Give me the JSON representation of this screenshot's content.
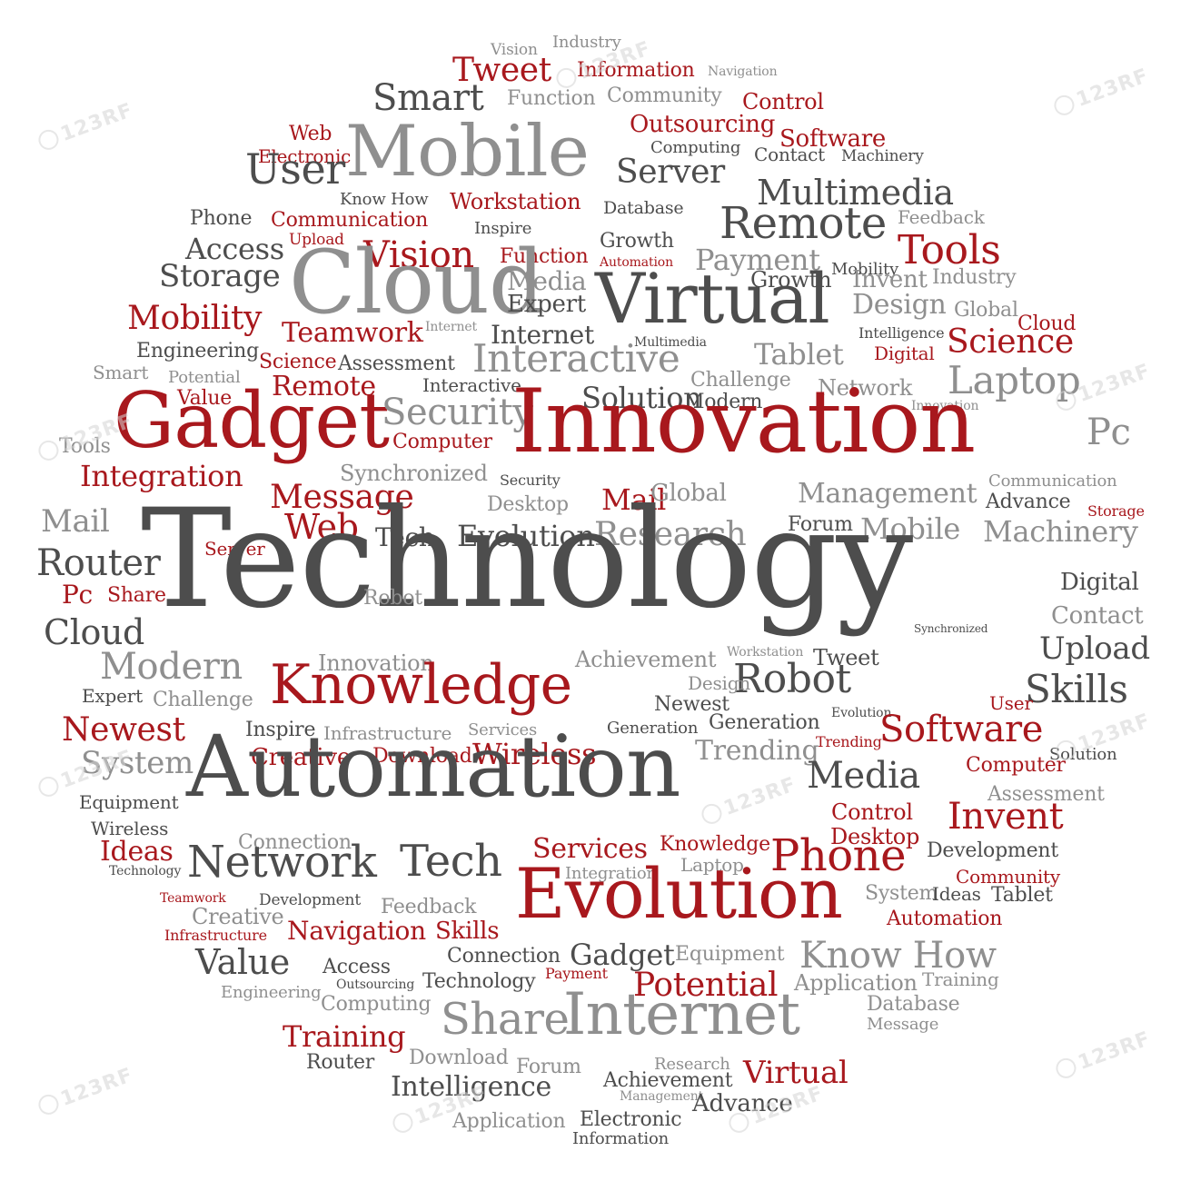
{
  "colors": {
    "dark": "#4d4d4d",
    "red": "#a8181d",
    "gray": "#8f8f8f"
  },
  "watermark_text": "123RF",
  "words": [
    {
      "t": "Vision",
      "c": "gray"
    },
    {
      "t": "Industry",
      "c": "gray"
    },
    {
      "t": "Tweet",
      "c": "red"
    },
    {
      "t": "Information",
      "c": "red"
    },
    {
      "t": "Navigation",
      "c": "gray"
    },
    {
      "t": "Smart",
      "c": "dark"
    },
    {
      "t": "Function",
      "c": "gray"
    },
    {
      "t": "Community",
      "c": "gray"
    },
    {
      "t": "Control",
      "c": "red"
    },
    {
      "t": "Outsourcing",
      "c": "red"
    },
    {
      "t": "Web",
      "c": "red"
    },
    {
      "t": "Mobile",
      "c": "gray"
    },
    {
      "t": "Software",
      "c": "red"
    },
    {
      "t": "Electronic",
      "c": "red"
    },
    {
      "t": "Computing",
      "c": "dark"
    },
    {
      "t": "Contact",
      "c": "dark"
    },
    {
      "t": "Machinery",
      "c": "dark"
    },
    {
      "t": "User",
      "c": "dark"
    },
    {
      "t": "Server",
      "c": "dark"
    },
    {
      "t": "Know How",
      "c": "dark"
    },
    {
      "t": "Workstation",
      "c": "red"
    },
    {
      "t": "Multimedia",
      "c": "dark"
    },
    {
      "t": "Database",
      "c": "dark"
    },
    {
      "t": "Phone",
      "c": "dark"
    },
    {
      "t": "Communication",
      "c": "red"
    },
    {
      "t": "Remote",
      "c": "dark"
    },
    {
      "t": "Feedback",
      "c": "gray"
    },
    {
      "t": "Inspire",
      "c": "dark"
    },
    {
      "t": "Upload",
      "c": "red"
    },
    {
      "t": "Growth",
      "c": "dark"
    },
    {
      "t": "Access",
      "c": "dark"
    },
    {
      "t": "Vision",
      "c": "red"
    },
    {
      "t": "Function",
      "c": "red"
    },
    {
      "t": "Tools",
      "c": "red"
    },
    {
      "t": "Automation",
      "c": "red"
    },
    {
      "t": "Payment",
      "c": "gray"
    },
    {
      "t": "Mobility",
      "c": "dark"
    },
    {
      "t": "Storage",
      "c": "dark"
    },
    {
      "t": "Cloud",
      "c": "gray"
    },
    {
      "t": "Invent",
      "c": "gray"
    },
    {
      "t": "Industry",
      "c": "gray"
    },
    {
      "t": "Media",
      "c": "gray"
    },
    {
      "t": "Growth",
      "c": "dark"
    },
    {
      "t": "Virtual",
      "c": "dark"
    },
    {
      "t": "Design",
      "c": "gray"
    },
    {
      "t": "Expert",
      "c": "dark"
    },
    {
      "t": "Global",
      "c": "gray"
    },
    {
      "t": "Mobility",
      "c": "red"
    },
    {
      "t": "Cloud",
      "c": "red"
    },
    {
      "t": "Teamwork",
      "c": "red"
    },
    {
      "t": "Internet",
      "c": "gray"
    },
    {
      "t": "Internet",
      "c": "dark"
    },
    {
      "t": "Intelligence",
      "c": "dark"
    },
    {
      "t": "Multimedia",
      "c": "dark"
    },
    {
      "t": "Digital",
      "c": "red"
    },
    {
      "t": "Science",
      "c": "red"
    },
    {
      "t": "Engineering",
      "c": "dark"
    },
    {
      "t": "Interactive",
      "c": "gray"
    },
    {
      "t": "Tablet",
      "c": "gray"
    },
    {
      "t": "Science",
      "c": "red"
    },
    {
      "t": "Assessment",
      "c": "dark"
    },
    {
      "t": "Smart",
      "c": "gray"
    },
    {
      "t": "Potential",
      "c": "gray"
    },
    {
      "t": "Laptop",
      "c": "gray"
    },
    {
      "t": "Challenge",
      "c": "gray"
    },
    {
      "t": "Interactive",
      "c": "dark"
    },
    {
      "t": "Remote",
      "c": "red"
    },
    {
      "t": "Network",
      "c": "gray"
    },
    {
      "t": "Value",
      "c": "red"
    },
    {
      "t": "Solution",
      "c": "dark"
    },
    {
      "t": "Modern",
      "c": "dark"
    },
    {
      "t": "Innovation",
      "c": "gray"
    },
    {
      "t": "Gadget",
      "c": "red"
    },
    {
      "t": "Security",
      "c": "gray"
    },
    {
      "t": "Innovation",
      "c": "red"
    },
    {
      "t": "Pc",
      "c": "gray"
    },
    {
      "t": "Tools",
      "c": "gray"
    },
    {
      "t": "Computer",
      "c": "red"
    },
    {
      "t": "Integration",
      "c": "red"
    },
    {
      "t": "Synchronized",
      "c": "gray"
    },
    {
      "t": "Security",
      "c": "dark"
    },
    {
      "t": "Communication",
      "c": "gray"
    },
    {
      "t": "Message",
      "c": "red"
    },
    {
      "t": "Desktop",
      "c": "gray"
    },
    {
      "t": "Mail",
      "c": "red"
    },
    {
      "t": "Global",
      "c": "gray"
    },
    {
      "t": "Management",
      "c": "gray"
    },
    {
      "t": "Advance",
      "c": "dark"
    },
    {
      "t": "Storage",
      "c": "red"
    },
    {
      "t": "Mail",
      "c": "gray"
    },
    {
      "t": "Web",
      "c": "red"
    },
    {
      "t": "Tech",
      "c": "dark"
    },
    {
      "t": "Evolution",
      "c": "dark"
    },
    {
      "t": "Research",
      "c": "gray"
    },
    {
      "t": "Forum",
      "c": "dark"
    },
    {
      "t": "Mobile",
      "c": "gray"
    },
    {
      "t": "Machinery",
      "c": "gray"
    },
    {
      "t": "Server",
      "c": "red"
    },
    {
      "t": "Technology",
      "c": "dark"
    },
    {
      "t": "Router",
      "c": "dark"
    },
    {
      "t": "Digital",
      "c": "dark"
    },
    {
      "t": "Pc",
      "c": "red"
    },
    {
      "t": "Share",
      "c": "red"
    },
    {
      "t": "Robot",
      "c": "gray"
    },
    {
      "t": "Synchronized",
      "c": "dark"
    },
    {
      "t": "Contact",
      "c": "gray"
    },
    {
      "t": "Cloud",
      "c": "dark"
    },
    {
      "t": "Upload",
      "c": "dark"
    },
    {
      "t": "Workstation",
      "c": "gray"
    },
    {
      "t": "Tweet",
      "c": "dark"
    },
    {
      "t": "Modern",
      "c": "gray"
    },
    {
      "t": "Innovation",
      "c": "gray"
    },
    {
      "t": "Achievement",
      "c": "gray"
    },
    {
      "t": "Knowledge",
      "c": "red"
    },
    {
      "t": "Robot",
      "c": "dark"
    },
    {
      "t": "Design",
      "c": "gray"
    },
    {
      "t": "Skills",
      "c": "dark"
    },
    {
      "t": "Expert",
      "c": "dark"
    },
    {
      "t": "Challenge",
      "c": "gray"
    },
    {
      "t": "Newest",
      "c": "dark"
    },
    {
      "t": "Evolution",
      "c": "dark"
    },
    {
      "t": "User",
      "c": "red"
    },
    {
      "t": "Newest",
      "c": "red"
    },
    {
      "t": "Inspire",
      "c": "dark"
    },
    {
      "t": "Infrastructure",
      "c": "gray"
    },
    {
      "t": "Services",
      "c": "gray"
    },
    {
      "t": "Generation",
      "c": "dark"
    },
    {
      "t": "Generation",
      "c": "dark"
    },
    {
      "t": "Software",
      "c": "red"
    },
    {
      "t": "Trending",
      "c": "red"
    },
    {
      "t": "System",
      "c": "gray"
    },
    {
      "t": "Creative",
      "c": "red"
    },
    {
      "t": "Download",
      "c": "red"
    },
    {
      "t": "Wireless",
      "c": "red"
    },
    {
      "t": "Trending",
      "c": "gray"
    },
    {
      "t": "Solution",
      "c": "dark"
    },
    {
      "t": "Automation",
      "c": "dark"
    },
    {
      "t": "Media",
      "c": "dark"
    },
    {
      "t": "Computer",
      "c": "red"
    },
    {
      "t": "Equipment",
      "c": "dark"
    },
    {
      "t": "Assessment",
      "c": "gray"
    },
    {
      "t": "Wireless",
      "c": "dark"
    },
    {
      "t": "Control",
      "c": "red"
    },
    {
      "t": "Invent",
      "c": "red"
    },
    {
      "t": "Connection",
      "c": "gray"
    },
    {
      "t": "Ideas",
      "c": "red"
    },
    {
      "t": "Network",
      "c": "dark"
    },
    {
      "t": "Tech",
      "c": "dark"
    },
    {
      "t": "Services",
      "c": "red"
    },
    {
      "t": "Knowledge",
      "c": "red"
    },
    {
      "t": "Desktop",
      "c": "red"
    },
    {
      "t": "Technology",
      "c": "dark"
    },
    {
      "t": "Laptop",
      "c": "gray"
    },
    {
      "t": "Phone",
      "c": "red"
    },
    {
      "t": "Development",
      "c": "dark"
    },
    {
      "t": "Integration",
      "c": "gray"
    },
    {
      "t": "Community",
      "c": "red"
    },
    {
      "t": "Teamwork",
      "c": "red"
    },
    {
      "t": "Evolution",
      "c": "red"
    },
    {
      "t": "System",
      "c": "gray"
    },
    {
      "t": "Ideas",
      "c": "dark"
    },
    {
      "t": "Tablet",
      "c": "dark"
    },
    {
      "t": "Creative",
      "c": "gray"
    },
    {
      "t": "Development",
      "c": "dark"
    },
    {
      "t": "Feedback",
      "c": "gray"
    },
    {
      "t": "Automation",
      "c": "red"
    },
    {
      "t": "Infrastructure",
      "c": "red"
    },
    {
      "t": "Navigation",
      "c": "red"
    },
    {
      "t": "Skills",
      "c": "red"
    },
    {
      "t": "Value",
      "c": "dark"
    },
    {
      "t": "Access",
      "c": "dark"
    },
    {
      "t": "Connection",
      "c": "dark"
    },
    {
      "t": "Gadget",
      "c": "dark"
    },
    {
      "t": "Equipment",
      "c": "gray"
    },
    {
      "t": "Know How",
      "c": "gray"
    },
    {
      "t": "Engineering",
      "c": "gray"
    },
    {
      "t": "Outsourcing",
      "c": "dark"
    },
    {
      "t": "Technology",
      "c": "dark"
    },
    {
      "t": "Payment",
      "c": "red"
    },
    {
      "t": "Potential",
      "c": "red"
    },
    {
      "t": "Application",
      "c": "gray"
    },
    {
      "t": "Training",
      "c": "gray"
    },
    {
      "t": "Computing",
      "c": "gray"
    },
    {
      "t": "Share",
      "c": "gray"
    },
    {
      "t": "Internet",
      "c": "gray"
    },
    {
      "t": "Database",
      "c": "gray"
    },
    {
      "t": "Message",
      "c": "gray"
    },
    {
      "t": "Training",
      "c": "red"
    },
    {
      "t": "Router",
      "c": "dark"
    },
    {
      "t": "Download",
      "c": "gray"
    },
    {
      "t": "Forum",
      "c": "gray"
    },
    {
      "t": "Research",
      "c": "gray"
    },
    {
      "t": "Virtual",
      "c": "red"
    },
    {
      "t": "Intelligence",
      "c": "dark"
    },
    {
      "t": "Achievement",
      "c": "dark"
    },
    {
      "t": "Management",
      "c": "gray"
    },
    {
      "t": "Advance",
      "c": "dark"
    },
    {
      "t": "Application",
      "c": "gray"
    },
    {
      "t": "Electronic",
      "c": "dark"
    },
    {
      "t": "Information",
      "c": "dark"
    }
  ]
}
